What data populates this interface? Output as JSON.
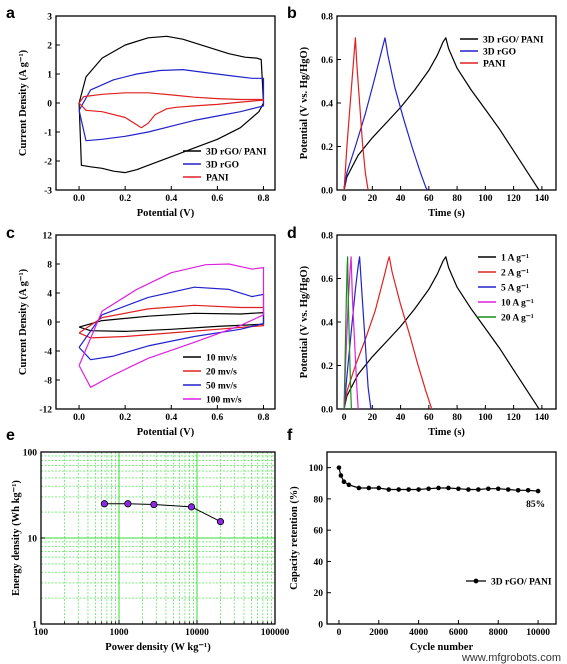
{
  "chart_data": [
    {
      "panel": "a",
      "type": "line",
      "xlabel": "Potential (V)",
      "ylabel": "Current Density (A g⁻¹)",
      "xlim": [
        -0.1,
        0.85
      ],
      "ylim": [
        -3,
        3
      ],
      "xticks": [
        0.0,
        0.2,
        0.4,
        0.6,
        0.8
      ],
      "xtick_labels": [
        "0.0",
        "0.2",
        "0.4",
        "0.6",
        "0.8"
      ],
      "yticks": [
        -3,
        -2,
        -1,
        0,
        1,
        2,
        3
      ],
      "legend_position": "bottom-right",
      "series": [
        {
          "name": "3D rGO/ PANI",
          "color": "#000000",
          "x": [
            0.0,
            0.03,
            0.1,
            0.2,
            0.3,
            0.38,
            0.45,
            0.55,
            0.65,
            0.72,
            0.77,
            0.79,
            0.8,
            0.78,
            0.7,
            0.6,
            0.5,
            0.4,
            0.3,
            0.25,
            0.2,
            0.15,
            0.1,
            0.05,
            0.01,
            0.0
          ],
          "y": [
            0.0,
            0.9,
            1.55,
            2.0,
            2.25,
            2.3,
            2.2,
            1.95,
            1.7,
            1.58,
            1.55,
            1.5,
            0.0,
            -0.3,
            -0.85,
            -1.25,
            -1.55,
            -1.85,
            -2.15,
            -2.3,
            -2.4,
            -2.35,
            -2.25,
            -2.2,
            -2.15,
            0.0
          ]
        },
        {
          "name": "3D rGO",
          "color": "#2222cc",
          "x": [
            0.0,
            0.05,
            0.15,
            0.25,
            0.35,
            0.45,
            0.55,
            0.65,
            0.75,
            0.8,
            0.8,
            0.7,
            0.6,
            0.5,
            0.4,
            0.3,
            0.2,
            0.1,
            0.03,
            0.0
          ],
          "y": [
            -0.25,
            0.45,
            0.8,
            1.0,
            1.12,
            1.15,
            1.05,
            0.95,
            0.85,
            0.85,
            -0.1,
            -0.3,
            -0.45,
            -0.6,
            -0.8,
            -1.0,
            -1.15,
            -1.25,
            -1.3,
            -0.25
          ]
        },
        {
          "name": "PANI",
          "color": "#e02020",
          "x": [
            0.0,
            0.02,
            0.1,
            0.2,
            0.3,
            0.4,
            0.5,
            0.6,
            0.7,
            0.8,
            0.8,
            0.7,
            0.6,
            0.5,
            0.42,
            0.38,
            0.33,
            0.3,
            0.27,
            0.2,
            0.1,
            0.03,
            0.0
          ],
          "y": [
            0.0,
            0.22,
            0.3,
            0.35,
            0.35,
            0.28,
            0.2,
            0.15,
            0.12,
            0.12,
            0.1,
            0.03,
            -0.05,
            -0.1,
            -0.15,
            -0.2,
            -0.4,
            -0.7,
            -0.85,
            -0.5,
            -0.3,
            -0.25,
            0.0
          ]
        }
      ]
    },
    {
      "panel": "b",
      "type": "line",
      "xlabel": "Time (s)",
      "ylabel": "Potential (V vs. Hg/HgO)",
      "xlim": [
        -5,
        150
      ],
      "ylim": [
        0,
        0.8
      ],
      "xticks": [
        0,
        20,
        40,
        60,
        80,
        100,
        120,
        140
      ],
      "yticks": [
        0.0,
        0.2,
        0.4,
        0.6,
        0.8
      ],
      "ytick_labels": [
        "0.0",
        "0.2",
        "0.4",
        "0.6",
        "0.8"
      ],
      "legend_position": "top-right",
      "series": [
        {
          "name": "3D rGO/ PANI",
          "color": "#000000",
          "x": [
            0,
            2,
            10,
            20,
            30,
            40,
            50,
            60,
            66,
            70,
            72,
            74,
            80,
            90,
            100,
            110,
            120,
            130,
            136,
            138
          ],
          "y": [
            0.0,
            0.06,
            0.16,
            0.24,
            0.31,
            0.38,
            0.46,
            0.55,
            0.62,
            0.68,
            0.7,
            0.65,
            0.56,
            0.46,
            0.37,
            0.28,
            0.18,
            0.08,
            0.02,
            0.0
          ]
        },
        {
          "name": "3D rGO",
          "color": "#2222cc",
          "x": [
            0,
            2,
            8,
            15,
            22,
            27,
            29,
            31,
            36,
            42,
            48,
            54,
            58,
            59
          ],
          "y": [
            0.0,
            0.08,
            0.2,
            0.35,
            0.52,
            0.65,
            0.7,
            0.62,
            0.47,
            0.33,
            0.2,
            0.08,
            0.01,
            0.0
          ]
        },
        {
          "name": "PANI",
          "color": "#e02020",
          "x": [
            0,
            2,
            5,
            7,
            8,
            9,
            11,
            13,
            15,
            17
          ],
          "y": [
            0.0,
            0.2,
            0.45,
            0.62,
            0.7,
            0.58,
            0.4,
            0.22,
            0.08,
            0.0
          ]
        }
      ]
    },
    {
      "panel": "c",
      "type": "line",
      "xlabel": "Potential (V)",
      "ylabel": "Current Density (A g⁻¹)",
      "xlim": [
        -0.1,
        0.85
      ],
      "ylim": [
        -12,
        12
      ],
      "xticks": [
        0.0,
        0.2,
        0.4,
        0.6,
        0.8
      ],
      "xtick_labels": [
        "0.0",
        "0.2",
        "0.4",
        "0.6",
        "0.8"
      ],
      "yticks": [
        -12,
        -8,
        -4,
        0,
        4,
        8,
        12
      ],
      "legend_position": "bottom-right",
      "series": [
        {
          "name": "10 mv/s",
          "color": "#000000",
          "x": [
            0.0,
            0.1,
            0.3,
            0.5,
            0.7,
            0.8,
            0.8,
            0.6,
            0.4,
            0.2,
            0.05,
            0.0
          ],
          "y": [
            -0.7,
            0.2,
            0.8,
            1.2,
            1.1,
            1.3,
            -0.3,
            -0.6,
            -1.0,
            -1.3,
            -1.2,
            -0.7
          ]
        },
        {
          "name": "20 mv/s",
          "color": "#e02020",
          "x": [
            0.0,
            0.1,
            0.3,
            0.5,
            0.7,
            0.8,
            0.8,
            0.6,
            0.4,
            0.2,
            0.05,
            0.0
          ],
          "y": [
            -1.5,
            0.6,
            1.8,
            2.3,
            2.0,
            2.0,
            -0.5,
            -1.0,
            -1.5,
            -2.0,
            -2.2,
            -1.5
          ]
        },
        {
          "name": "50 mv/s",
          "color": "#2222cc",
          "x": [
            0.0,
            0.1,
            0.3,
            0.5,
            0.65,
            0.75,
            0.8,
            0.8,
            0.7,
            0.5,
            0.3,
            0.15,
            0.05,
            0.0
          ],
          "y": [
            -3.5,
            1.0,
            3.4,
            4.8,
            4.5,
            3.5,
            3.8,
            -0.2,
            -1.0,
            -2.0,
            -3.3,
            -4.7,
            -5.2,
            -3.5
          ]
        },
        {
          "name": "100 mv/s",
          "color": "#dd22dd",
          "x": [
            0.0,
            0.1,
            0.25,
            0.4,
            0.55,
            0.65,
            0.75,
            0.8,
            0.8,
            0.7,
            0.5,
            0.3,
            0.15,
            0.05,
            0.0
          ],
          "y": [
            -6.0,
            1.5,
            4.5,
            6.8,
            7.9,
            8.0,
            7.3,
            7.5,
            1.0,
            -0.5,
            -2.8,
            -5.0,
            -7.3,
            -9.0,
            -6.0
          ]
        }
      ]
    },
    {
      "panel": "d",
      "type": "line",
      "xlabel": "Time (s)",
      "ylabel": "Potential (V vs. Hg/HgO)",
      "xlim": [
        -5,
        150
      ],
      "ylim": [
        0,
        0.8
      ],
      "xticks": [
        0,
        20,
        40,
        60,
        80,
        100,
        120,
        140
      ],
      "yticks": [
        0.0,
        0.2,
        0.4,
        0.6,
        0.8
      ],
      "ytick_labels": [
        "0.0",
        "0.2",
        "0.4",
        "0.6",
        "0.8"
      ],
      "legend_position": "top-right",
      "series": [
        {
          "name": "1 A g⁻¹",
          "color": "#000000",
          "x": [
            0,
            2,
            10,
            20,
            30,
            40,
            50,
            60,
            66,
            70,
            72,
            74,
            80,
            90,
            100,
            110,
            120,
            130,
            136,
            138
          ],
          "y": [
            0.0,
            0.06,
            0.16,
            0.24,
            0.31,
            0.38,
            0.46,
            0.55,
            0.62,
            0.68,
            0.7,
            0.65,
            0.56,
            0.46,
            0.37,
            0.28,
            0.18,
            0.08,
            0.02,
            0.0
          ]
        },
        {
          "name": "2 A g⁻¹",
          "color": "#e02020",
          "x": [
            0,
            2,
            8,
            15,
            22,
            28,
            31,
            32,
            34,
            40,
            46,
            52,
            58,
            61,
            62
          ],
          "y": [
            0.0,
            0.08,
            0.2,
            0.32,
            0.45,
            0.6,
            0.68,
            0.7,
            0.63,
            0.48,
            0.35,
            0.21,
            0.08,
            0.02,
            0.0
          ]
        },
        {
          "name": "5 A g⁻¹",
          "color": "#2222cc",
          "x": [
            0,
            2,
            5,
            8,
            10,
            11,
            13,
            15,
            17,
            19
          ],
          "y": [
            0.0,
            0.15,
            0.35,
            0.55,
            0.66,
            0.7,
            0.5,
            0.3,
            0.1,
            0.0
          ]
        },
        {
          "name": "10 A g⁻¹",
          "color": "#dd22dd",
          "x": [
            0,
            1,
            3,
            4.5,
            5,
            6,
            7.5,
            9,
            10
          ],
          "y": [
            0.0,
            0.2,
            0.5,
            0.66,
            0.7,
            0.5,
            0.3,
            0.1,
            0.0
          ]
        },
        {
          "name": "20 A g⁻¹",
          "color": "#1a8c1a",
          "x": [
            0,
            0.8,
            1.6,
            2.2,
            2.5,
            3.0,
            3.8,
            4.6,
            5.2
          ],
          "y": [
            0.0,
            0.25,
            0.5,
            0.66,
            0.7,
            0.5,
            0.3,
            0.1,
            0.0
          ]
        }
      ]
    },
    {
      "panel": "e",
      "type": "scatter",
      "xlabel": "Power density (W kg⁻¹)",
      "ylabel": "Energy density (Wh kg⁻¹)",
      "xscale": "log",
      "yscale": "log",
      "xlim": [
        100,
        100000
      ],
      "ylim": [
        1,
        100
      ],
      "xticks": [
        100,
        1000,
        10000,
        100000
      ],
      "xtick_labels": [
        "100",
        "1000",
        "10000",
        "100000"
      ],
      "yticks": [
        1,
        10,
        100
      ],
      "ytick_labels": [
        "1",
        "10",
        "100"
      ],
      "grid": true,
      "series": [
        {
          "color": "#8a2be2",
          "x": [
            650,
            1300,
            2800,
            8500,
            20000
          ],
          "y": [
            25.0,
            25.0,
            24.5,
            23.0,
            15.5
          ]
        }
      ]
    },
    {
      "panel": "f",
      "type": "line",
      "xlabel": "Cycle number",
      "ylabel": "Capacity retention (%)",
      "xlim": [
        -600,
        10900
      ],
      "ylim": [
        0,
        110
      ],
      "xticks": [
        0,
        2000,
        4000,
        6000,
        8000,
        10000
      ],
      "yticks": [
        0,
        20,
        40,
        60,
        80,
        100
      ],
      "legend_position": "bottom-right",
      "annotation": "85%",
      "series": [
        {
          "name": "3D rGO/ PANI",
          "color": "#000000",
          "x": [
            0,
            100,
            250,
            500,
            1000,
            1500,
            2000,
            2500,
            3000,
            3500,
            4000,
            4500,
            5000,
            5500,
            6000,
            6500,
            7000,
            7500,
            8000,
            8500,
            9000,
            9500,
            10000
          ],
          "y": [
            100,
            95,
            91,
            89,
            87,
            87,
            87,
            86,
            86,
            86,
            86,
            86.5,
            87,
            87,
            86.5,
            86,
            86,
            86.5,
            86.5,
            86,
            85.5,
            85.5,
            85
          ]
        }
      ]
    }
  ],
  "watermark": "www.mfgrobots.com"
}
